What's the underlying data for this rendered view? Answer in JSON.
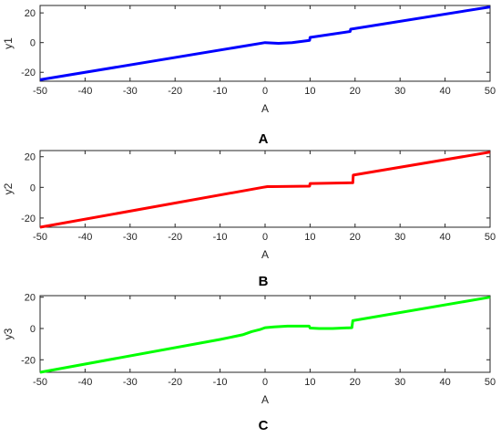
{
  "chart_data": [
    {
      "type": "line",
      "caption": "A",
      "xlabel": "A",
      "ylabel": "y1",
      "xlim": [
        -50,
        50
      ],
      "ylim": [
        -26,
        25
      ],
      "xticks": [
        -50,
        -40,
        -30,
        -20,
        -10,
        0,
        10,
        20,
        30,
        40,
        50
      ],
      "yticks": [
        -20,
        0,
        20
      ],
      "grid": false,
      "color": "#0000ff",
      "series": [
        {
          "x": [
            -50,
            0,
            3,
            6,
            9.9,
            10,
            18.9,
            19,
            50
          ],
          "y": [
            -25,
            0,
            -0.5,
            0,
            1.5,
            3.5,
            7.5,
            9,
            24
          ]
        }
      ]
    },
    {
      "type": "line",
      "caption": "B",
      "xlabel": "A",
      "ylabel": "y2",
      "xlim": [
        -50,
        50
      ],
      "ylim": [
        -26,
        24
      ],
      "xticks": [
        -50,
        -40,
        -30,
        -20,
        -10,
        0,
        10,
        20,
        30,
        40,
        50
      ],
      "yticks": [
        -20,
        0,
        20
      ],
      "grid": false,
      "color": "#ff0000",
      "series": [
        {
          "x": [
            -50,
            -0.5,
            0.5,
            1.5,
            9.9,
            10,
            19.5,
            19.6,
            50
          ],
          "y": [
            -26,
            0,
            0.5,
            0.5,
            0.8,
            2.5,
            3,
            8,
            23
          ]
        }
      ]
    },
    {
      "type": "line",
      "caption": "C",
      "xlabel": "A",
      "ylabel": "y3",
      "xlim": [
        -50,
        50
      ],
      "ylim": [
        -28,
        21
      ],
      "xticks": [
        -50,
        -40,
        -30,
        -20,
        -10,
        0,
        10,
        20,
        30,
        40,
        50
      ],
      "yticks": [
        -20,
        0,
        20
      ],
      "grid": false,
      "color": "#00ff00",
      "series": [
        {
          "x": [
            -50,
            -10,
            -5,
            -3,
            -1,
            0,
            2,
            5,
            9.8,
            10,
            12,
            15,
            19.3,
            19.5,
            50
          ],
          "y": [
            -28,
            -7,
            -4,
            -2,
            -0.5,
            0.5,
            1,
            1.5,
            1.5,
            0.3,
            0,
            0,
            0.5,
            5,
            20
          ]
        }
      ]
    }
  ]
}
